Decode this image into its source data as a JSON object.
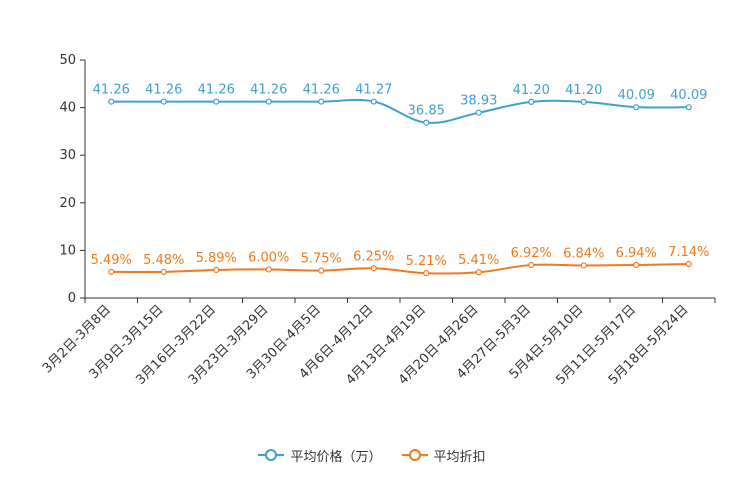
{
  "chart_data": {
    "type": "line",
    "title": "",
    "xlabel": "",
    "ylabel": "",
    "ylim": [
      0,
      50
    ],
    "yticks": [
      0,
      10,
      20,
      30,
      40,
      50
    ],
    "grid": false,
    "legend_position": "bottom-center",
    "categories": [
      "3月2日-3月8日",
      "3月9日-3月15日",
      "3月16日-3月22日",
      "3月23日-3月29日",
      "3月30日-4月5日",
      "4月6日-4月12日",
      "4月13日-4月19日",
      "4月20日-4月26日",
      "4月27日-5月3日",
      "5月4日-5月10日",
      "5月11日-5月17日",
      "5月18日-5月24日"
    ],
    "series": [
      {
        "name": "平均价格（万）",
        "color": "#3fa0d0",
        "values": [
          41.26,
          41.26,
          41.26,
          41.26,
          41.26,
          41.27,
          36.85,
          38.93,
          41.2,
          41.2,
          40.09,
          40.09
        ],
        "labels": [
          "41.26",
          "41.26",
          "41.26",
          "41.26",
          "41.26",
          "41.27",
          "36.85",
          "38.93",
          "41.20",
          "41.20",
          "40.09",
          "40.09"
        ]
      },
      {
        "name": "平均折扣",
        "color": "#f07a1f",
        "values": [
          5.49,
          5.48,
          5.89,
          6.0,
          5.75,
          6.25,
          5.21,
          5.41,
          6.92,
          6.84,
          6.94,
          7.14
        ],
        "labels": [
          "5.49%",
          "5.48%",
          "5.89%",
          "6.00%",
          "5.75%",
          "6.25%",
          "5.21%",
          "5.41%",
          "6.92%",
          "6.84%",
          "6.94%",
          "7.14%"
        ]
      }
    ]
  }
}
